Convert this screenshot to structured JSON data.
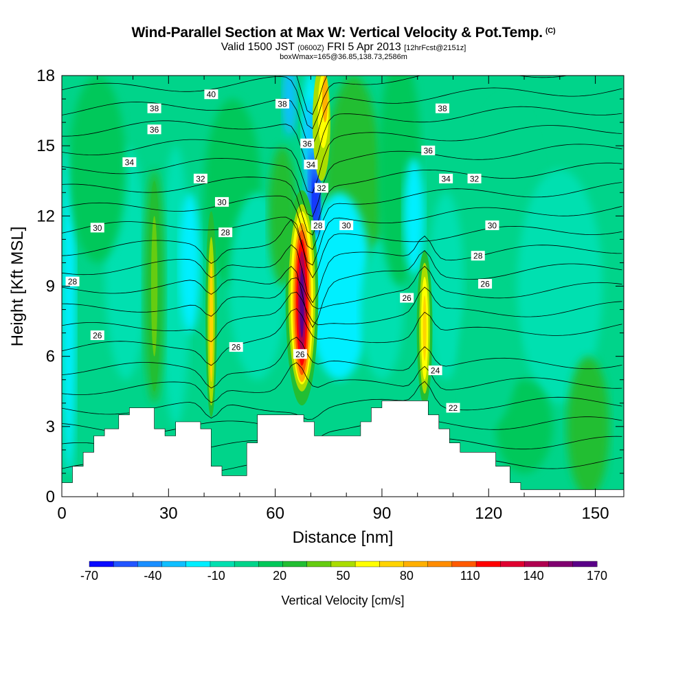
{
  "header": {
    "title": "Wind-Parallel Section at Max W: Vertical Velocity & Pot.Temp.",
    "title_mark": "(C)",
    "subtitle_a": "Valid 1500 JST",
    "subtitle_b": "(0600Z)",
    "subtitle_c": "FRI 5 Apr 2013",
    "subtitle_d": "[12hrFcst@2151z]",
    "line3": "boxWmax=165@36.85,138.73,2586m"
  },
  "chart_data": {
    "type": "heatmap",
    "title": "Wind-Parallel Section at Max W: Vertical Velocity & Pot.Temp.",
    "xlabel": "Distance [nm]",
    "ylabel": "Height [Kft MSL]",
    "xlim": [
      0,
      158
    ],
    "ylim": [
      0,
      18
    ],
    "x_ticks": [
      0,
      30,
      60,
      90,
      120,
      150
    ],
    "y_ticks": [
      0,
      3,
      6,
      9,
      12,
      15,
      18
    ],
    "colorbar": {
      "label": "Vertical Velocity [cm/s]",
      "tick_labels": [
        "-70",
        "-40",
        "-10",
        "20",
        "50",
        "80",
        "110",
        "140",
        "170"
      ],
      "colors": [
        "#0a0aff",
        "#2255ff",
        "#1a8fff",
        "#10bfff",
        "#00efff",
        "#00e0b0",
        "#00d48a",
        "#00c85a",
        "#22be33",
        "#66cc11",
        "#aadd00",
        "#ffff00",
        "#ffd400",
        "#ffb000",
        "#ff8c00",
        "#ff5a00",
        "#ff0000",
        "#e00030",
        "#b00050",
        "#800070",
        "#5a0088"
      ]
    },
    "vertical_velocity_cells_cm_s": [
      {
        "x": 68,
        "y_min": 4.5,
        "y_max": 12.3,
        "w_max": 165
      },
      {
        "x": 102,
        "y_min": 4.0,
        "y_max": 10.2,
        "w_max": 60
      },
      {
        "x": 42,
        "y_min": 3.5,
        "y_max": 12.0,
        "w_max": 45
      },
      {
        "x": 26,
        "y_min": 4.0,
        "y_max": 13.5,
        "w_max": 25
      },
      {
        "x": 72,
        "y_min": 12.5,
        "y_max": 18.0,
        "w_max": 60
      },
      {
        "x": 70,
        "y_min": 11.5,
        "y_max": 18.0,
        "w_max": -70
      }
    ],
    "theta_contour_labels": [
      {
        "text": "40",
        "x": 42,
        "y": 17.2
      },
      {
        "text": "38",
        "x": 26,
        "y": 16.6
      },
      {
        "text": "38",
        "x": 62,
        "y": 16.8
      },
      {
        "text": "38",
        "x": 107,
        "y": 16.6
      },
      {
        "text": "36",
        "x": 26,
        "y": 15.7
      },
      {
        "text": "36",
        "x": 69,
        "y": 15.1
      },
      {
        "text": "36",
        "x": 103,
        "y": 14.8
      },
      {
        "text": "34",
        "x": 19,
        "y": 14.3
      },
      {
        "text": "34",
        "x": 70,
        "y": 14.2
      },
      {
        "text": "34",
        "x": 108,
        "y": 13.6
      },
      {
        "text": "32",
        "x": 39,
        "y": 13.6
      },
      {
        "text": "32",
        "x": 73,
        "y": 13.2
      },
      {
        "text": "32",
        "x": 116,
        "y": 13.6
      },
      {
        "text": "30",
        "x": 45,
        "y": 12.6
      },
      {
        "text": "30",
        "x": 10,
        "y": 11.5
      },
      {
        "text": "30",
        "x": 80,
        "y": 11.6
      },
      {
        "text": "30",
        "x": 121,
        "y": 11.6
      },
      {
        "text": "28",
        "x": 46,
        "y": 11.3
      },
      {
        "text": "28",
        "x": 72,
        "y": 11.6
      },
      {
        "text": "28",
        "x": 3,
        "y": 9.2
      },
      {
        "text": "28",
        "x": 117,
        "y": 10.3
      },
      {
        "text": "26",
        "x": 10,
        "y": 6.9
      },
      {
        "text": "26",
        "x": 49,
        "y": 6.4
      },
      {
        "text": "26",
        "x": 67,
        "y": 6.1
      },
      {
        "text": "26",
        "x": 97,
        "y": 8.5
      },
      {
        "text": "26",
        "x": 119,
        "y": 9.1
      },
      {
        "text": "24",
        "x": 105,
        "y": 5.4
      },
      {
        "text": "22",
        "x": 110,
        "y": 3.8
      }
    ],
    "terrain_kft": [
      [
        0,
        0.6
      ],
      [
        3,
        0.6
      ],
      [
        3,
        1.3
      ],
      [
        6,
        1.3
      ],
      [
        6,
        1.9
      ],
      [
        9,
        1.9
      ],
      [
        9,
        2.6
      ],
      [
        12,
        2.6
      ],
      [
        12,
        2.9
      ],
      [
        16,
        2.9
      ],
      [
        16,
        3.5
      ],
      [
        19,
        3.5
      ],
      [
        19,
        3.8
      ],
      [
        26,
        3.8
      ],
      [
        26,
        2.9
      ],
      [
        29,
        2.9
      ],
      [
        29,
        2.6
      ],
      [
        32,
        2.6
      ],
      [
        32,
        3.2
      ],
      [
        39,
        3.2
      ],
      [
        39,
        2.9
      ],
      [
        42,
        2.9
      ],
      [
        42,
        1.3
      ],
      [
        45,
        1.3
      ],
      [
        45,
        0.9
      ],
      [
        52,
        0.9
      ],
      [
        52,
        2.3
      ],
      [
        55,
        2.3
      ],
      [
        55,
        3.5
      ],
      [
        68,
        3.5
      ],
      [
        68,
        3.2
      ],
      [
        71,
        3.2
      ],
      [
        71,
        2.6
      ],
      [
        84,
        2.6
      ],
      [
        84,
        3.2
      ],
      [
        87,
        3.2
      ],
      [
        87,
        3.8
      ],
      [
        90,
        3.8
      ],
      [
        90,
        4.1
      ],
      [
        103,
        4.1
      ],
      [
        103,
        3.5
      ],
      [
        106,
        3.5
      ],
      [
        106,
        2.9
      ],
      [
        109,
        2.9
      ],
      [
        109,
        2.3
      ],
      [
        112,
        2.3
      ],
      [
        112,
        1.9
      ],
      [
        122,
        1.9
      ],
      [
        122,
        1.3
      ],
      [
        126,
        1.3
      ],
      [
        126,
        0.6
      ],
      [
        129,
        0.6
      ],
      [
        129,
        0.3
      ],
      [
        158,
        0.3
      ]
    ]
  }
}
